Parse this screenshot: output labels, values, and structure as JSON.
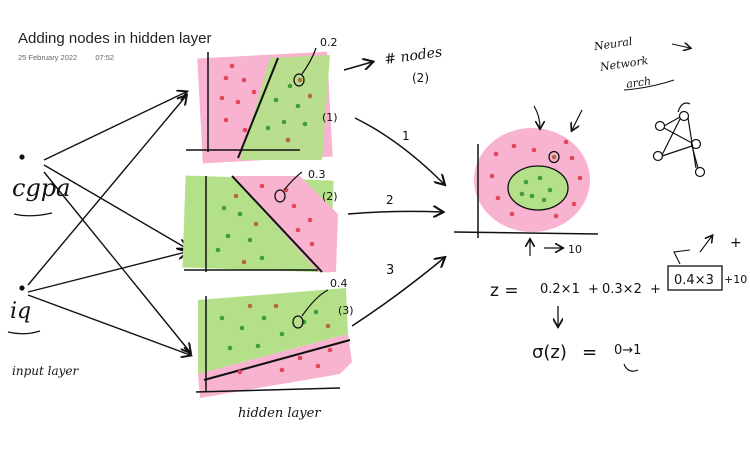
{
  "header": {
    "title": "Adding nodes in hidden layer",
    "date": "25 February 2022",
    "time": "07:52"
  },
  "inputs": {
    "cgpa_label": "cgpa",
    "iq_label": "iq",
    "input_layer_label": "input layer"
  },
  "hidden": {
    "label": "hidden layer",
    "nodes": [
      {
        "weight_label": "0.2",
        "index_label": "(1)",
        "arrow_label": "1"
      },
      {
        "weight_label": "0.3",
        "index_label": "(2)",
        "arrow_label": "2"
      },
      {
        "weight_label": "0.4",
        "index_label": "(3)",
        "arrow_label": "3"
      }
    ]
  },
  "notes": {
    "nodes_label": "# nodes",
    "nodes_count": "(2)",
    "neural_network_line1": "Neural",
    "neural_network_line2": "Network",
    "neural_network_line3": "arch",
    "output_axis_label": "10"
  },
  "equation": {
    "z_lhs": "z =",
    "term1": "0.2×1",
    "plus1": "+",
    "term2": "0.3×2",
    "plus2": "+",
    "term3": "0.4×3",
    "bias": "+10",
    "extra_plus": "+",
    "sigma": "σ(z)",
    "sigma_eq": "=",
    "sigma_range": "0→1"
  },
  "colors": {
    "pink": "#f4a6c8",
    "green": "#b5e08a",
    "dot_red": "#e0455a",
    "dot_green": "#3f9d3a",
    "dot_brown": "#b46a3c",
    "ink": "#111111"
  }
}
